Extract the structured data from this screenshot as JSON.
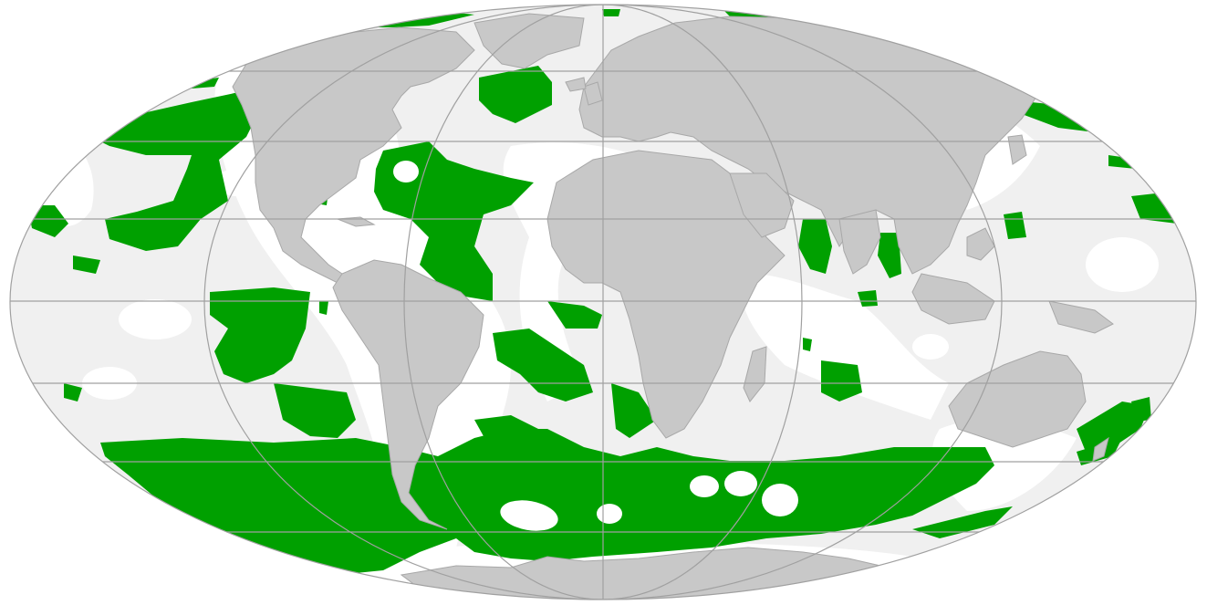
{
  "map": {
    "projection": "Mollweide",
    "colors": {
      "background": "#ffffff",
      "ocean_light": "#f0f0f0",
      "ocean_white": "#ffffff",
      "land": "#c8c8c8",
      "borders": "#a8a8a8",
      "graticule": "#a0a0a0",
      "highlight": "#00a000"
    }
  }
}
